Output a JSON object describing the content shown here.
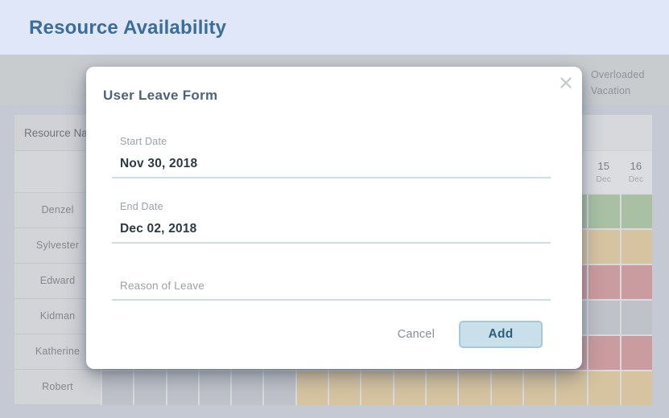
{
  "app": {
    "title": "Resource Availability"
  },
  "legend": {
    "items": [
      "Overloaded",
      "Vacation"
    ]
  },
  "modal": {
    "title": "User Leave Form",
    "fields": {
      "start_date": {
        "label": "Start Date",
        "value": "Nov 30, 2018"
      },
      "end_date": {
        "label": "End Date",
        "value": "Dec 02, 2018"
      },
      "reason": {
        "value": "",
        "placeholder": "Reason of Leave"
      }
    },
    "buttons": {
      "cancel_label": "Cancel",
      "add_label": "Add"
    }
  },
  "schedule": {
    "name_column_header": "Resource Name",
    "column_count": 17,
    "date_labels": [
      {
        "col": 16,
        "day": "15",
        "month": "Dec"
      },
      {
        "col": 17,
        "day": "16",
        "month": "Dec"
      }
    ],
    "rows": [
      {
        "name": "Denzel",
        "segments": [
          {
            "color": "green",
            "span": 17
          }
        ]
      },
      {
        "name": "Sylvester",
        "segments": [
          {
            "color": "tan",
            "span": 17
          }
        ]
      },
      {
        "name": "Edward",
        "segments": [
          {
            "color": "red",
            "span": 17
          }
        ]
      },
      {
        "name": "Kidman",
        "segments": [
          {
            "color": "gray",
            "span": 17
          }
        ]
      },
      {
        "name": "Katherine",
        "segments": [
          {
            "color": "green",
            "span": 9
          },
          {
            "color": "red",
            "span": 8
          }
        ]
      },
      {
        "name": "Robert",
        "segments": [
          {
            "color": "gray",
            "span": 6
          },
          {
            "color": "tan",
            "span": 11
          }
        ]
      }
    ],
    "cell_colors": {
      "green": "#a9c0a4",
      "tan": "#d6c4a0",
      "red": "#cb9c9f",
      "gray": "#bfc3c9"
    }
  },
  "theme": {
    "header_bg": "#dfe7f9",
    "header_text": "#3a6d99",
    "underline": "#c9dfe4",
    "add_button_bg": "#c9e0eb",
    "add_button_border": "#a5c9dc",
    "add_button_text": "#2e607c"
  }
}
